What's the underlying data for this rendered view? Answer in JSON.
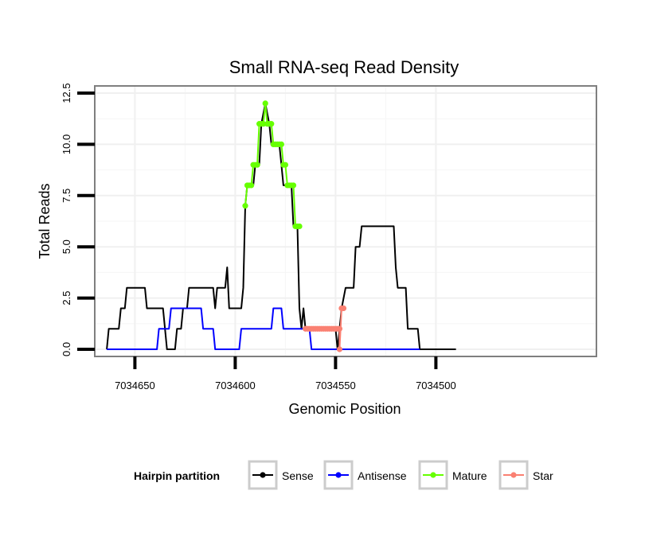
{
  "chart_data": {
    "type": "line",
    "title": "Small RNA-seq Read Density",
    "xlabel": "Genomic Position",
    "ylabel": "Total Reads",
    "xlim": [
      7034670,
      7034420
    ],
    "ylim": [
      -0.35,
      12.85
    ],
    "x_reversed": true,
    "grid": true,
    "x_ticks": [
      7034650,
      7034600,
      7034550,
      7034500
    ],
    "x_tick_labels": [
      "7034650",
      "7034600",
      "7034550",
      "7034500"
    ],
    "y_ticks": [
      0,
      2.5,
      5,
      7.5,
      10,
      12.5
    ],
    "y_tick_labels": [
      "0.0",
      "2.5",
      "5.0",
      "7.5",
      "10.0",
      "12.5"
    ],
    "legend": {
      "title": "Hairpin partition",
      "position": "bottom",
      "entries": [
        {
          "label": "Sense",
          "color": "#000000"
        },
        {
          "label": "Antisense",
          "color": "#0000ff"
        },
        {
          "label": "Mature",
          "color": "#66ff00"
        },
        {
          "label": "Star",
          "color": "#fa8072"
        }
      ]
    },
    "series": [
      {
        "name": "Sense",
        "color": "#000000",
        "points": [
          [
            7034664,
            0
          ],
          [
            7034663,
            1
          ],
          [
            7034658,
            1
          ],
          [
            7034657,
            2
          ],
          [
            7034655,
            2
          ],
          [
            7034654,
            3
          ],
          [
            7034645,
            3
          ],
          [
            7034644,
            2
          ],
          [
            7034636,
            2
          ],
          [
            7034634,
            0
          ],
          [
            7034630,
            0
          ],
          [
            7034629,
            1
          ],
          [
            7034627,
            1
          ],
          [
            7034626,
            2
          ],
          [
            7034624,
            2
          ],
          [
            7034623,
            3
          ],
          [
            7034611,
            3
          ],
          [
            7034610,
            2
          ],
          [
            7034609,
            3
          ],
          [
            7034605,
            3
          ],
          [
            7034604,
            4
          ],
          [
            7034603,
            2
          ],
          [
            7034597,
            2
          ],
          [
            7034596,
            3
          ],
          [
            7034595,
            7
          ],
          [
            7034594,
            8
          ],
          [
            7034591,
            8
          ],
          [
            7034590,
            9
          ],
          [
            7034588,
            9
          ],
          [
            7034587,
            11
          ],
          [
            7034585,
            12
          ],
          [
            7034583,
            11
          ],
          [
            7034582,
            10
          ],
          [
            7034578,
            10
          ],
          [
            7034577,
            9
          ],
          [
            7034576,
            8
          ],
          [
            7034572,
            8
          ],
          [
            7034571,
            6
          ],
          [
            7034569,
            6
          ],
          [
            7034568,
            2
          ],
          [
            7034567,
            1
          ],
          [
            7034566,
            2
          ],
          [
            7034565,
            1
          ],
          [
            7034550,
            1
          ],
          [
            7034549,
            0
          ],
          [
            7034547,
            2
          ],
          [
            7034545,
            3
          ],
          [
            7034541,
            3
          ],
          [
            7034540,
            5
          ],
          [
            7034538,
            5
          ],
          [
            7034537,
            6
          ],
          [
            7034521,
            6
          ],
          [
            7034520,
            4
          ],
          [
            7034519,
            3
          ],
          [
            7034515,
            3
          ],
          [
            7034514,
            1
          ],
          [
            7034509,
            1
          ],
          [
            7034508,
            0
          ],
          [
            7034490,
            0
          ]
        ]
      },
      {
        "name": "Antisense",
        "color": "#0000ff",
        "points": [
          [
            7034664,
            0
          ],
          [
            7034639,
            0
          ],
          [
            7034638,
            1
          ],
          [
            7034633,
            1
          ],
          [
            7034632,
            2
          ],
          [
            7034617,
            2
          ],
          [
            7034616,
            1
          ],
          [
            7034611,
            1
          ],
          [
            7034610,
            0
          ],
          [
            7034598,
            0
          ],
          [
            7034597,
            1
          ],
          [
            7034582,
            1
          ],
          [
            7034581,
            2
          ],
          [
            7034577,
            2
          ],
          [
            7034576,
            1
          ],
          [
            7034563,
            1
          ],
          [
            7034562,
            0
          ],
          [
            7034508,
            0
          ]
        ]
      },
      {
        "name": "Mature",
        "color": "#66ff00",
        "points": [
          [
            7034595,
            7
          ],
          [
            7034594,
            8
          ],
          [
            7034593,
            8
          ],
          [
            7034592,
            8
          ],
          [
            7034591,
            9
          ],
          [
            7034590,
            9
          ],
          [
            7034589,
            9
          ],
          [
            7034588,
            11
          ],
          [
            7034587,
            11
          ],
          [
            7034586,
            11
          ],
          [
            7034585,
            12
          ],
          [
            7034584,
            11
          ],
          [
            7034583,
            11
          ],
          [
            7034582,
            11
          ],
          [
            7034581,
            10
          ],
          [
            7034580,
            10
          ],
          [
            7034579,
            10
          ],
          [
            7034578,
            10
          ],
          [
            7034577,
            10
          ],
          [
            7034576,
            9
          ],
          [
            7034575,
            9
          ],
          [
            7034574,
            8
          ],
          [
            7034573,
            8
          ],
          [
            7034572,
            8
          ],
          [
            7034571,
            8
          ],
          [
            7034570,
            6
          ],
          [
            7034569,
            6
          ],
          [
            7034568,
            6
          ]
        ]
      },
      {
        "name": "Star",
        "color": "#fa8072",
        "points": [
          [
            7034565,
            1
          ],
          [
            7034564,
            1
          ],
          [
            7034563,
            1
          ],
          [
            7034562,
            1
          ],
          [
            7034561,
            1
          ],
          [
            7034560,
            1
          ],
          [
            7034559,
            1
          ],
          [
            7034558,
            1
          ],
          [
            7034557,
            1
          ],
          [
            7034556,
            1
          ],
          [
            7034555,
            1
          ],
          [
            7034554,
            1
          ],
          [
            7034553,
            1
          ],
          [
            7034552,
            1
          ],
          [
            7034551,
            1
          ],
          [
            7034550,
            1
          ],
          [
            7034549,
            1
          ],
          [
            7034548,
            1
          ],
          [
            7034548,
            0
          ],
          [
            7034547,
            2
          ],
          [
            7034546,
            2
          ]
        ]
      }
    ]
  }
}
